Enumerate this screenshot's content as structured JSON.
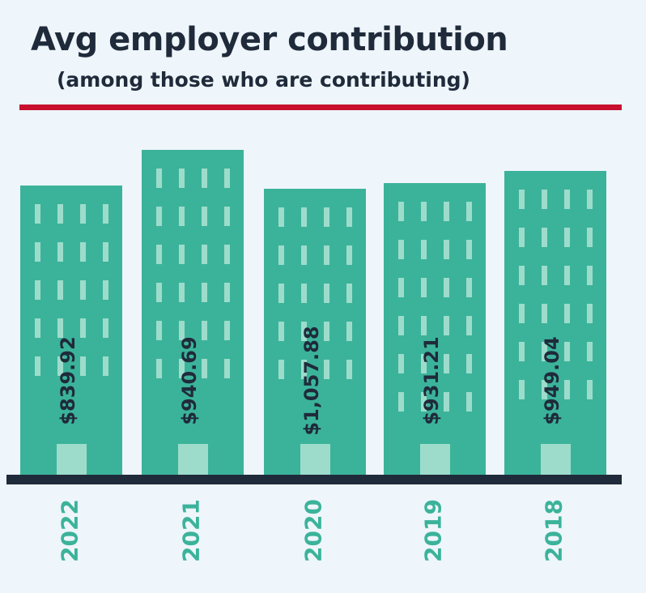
{
  "colors": {
    "background": "#eef5fb",
    "text": "#1f2a3a",
    "rule": "#c8102e",
    "building": "#3bb39a",
    "window": "#9ddccb",
    "baseline": "#1f2a3a",
    "year_label": "#3bb39a"
  },
  "chart_data": {
    "type": "bar",
    "title": "Avg employer contribution",
    "subtitle": "(among those who are contributing)",
    "categories": [
      "2022",
      "2021",
      "2020",
      "2019",
      "2018"
    ],
    "series": [
      {
        "values": [
          839.92,
          940.69,
          1057.88,
          931.21,
          949.04
        ],
        "labels": [
          "$839.92",
          "$940.69",
          "$1,057.88",
          "$931.21",
          "$949.04"
        ]
      }
    ],
    "grid": false,
    "legend": "none"
  }
}
